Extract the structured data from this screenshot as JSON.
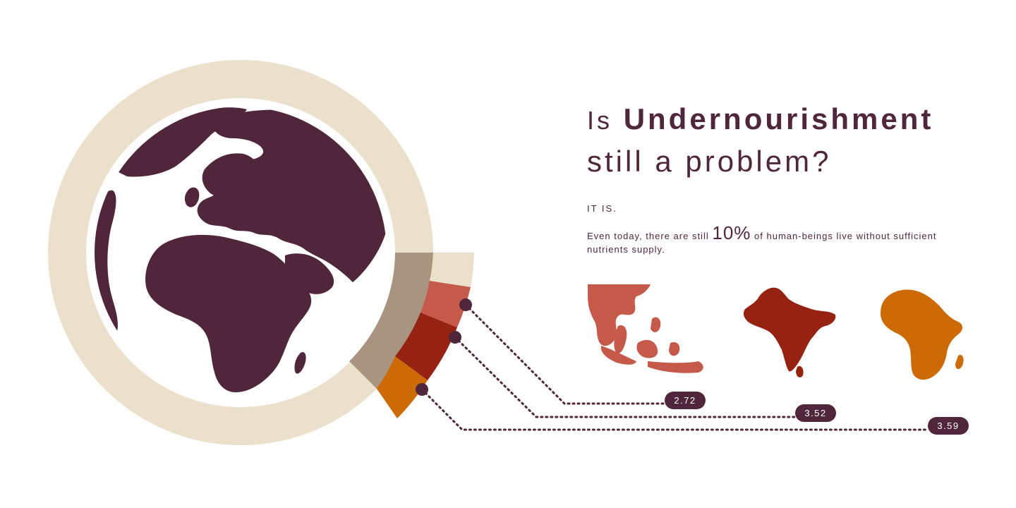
{
  "headline": {
    "lead": "Is",
    "emphasis": "Undernourishment",
    "rest": "still a problem?"
  },
  "answer": "IT IS.",
  "body": {
    "before": "Even today, there are still",
    "highlight": "10%",
    "after": "of human-beings live without sufficient nutrients supply."
  },
  "regions": [
    {
      "label": "2.72",
      "color": "#c65a4a"
    },
    {
      "label": "3.52",
      "color": "#962312"
    },
    {
      "label": "3.59",
      "color": "#cc6a05"
    }
  ],
  "colors": {
    "ring": "#eae0cb",
    "ring_dark": "#a89480",
    "land": "#50263a",
    "connector": "#50263a"
  }
}
